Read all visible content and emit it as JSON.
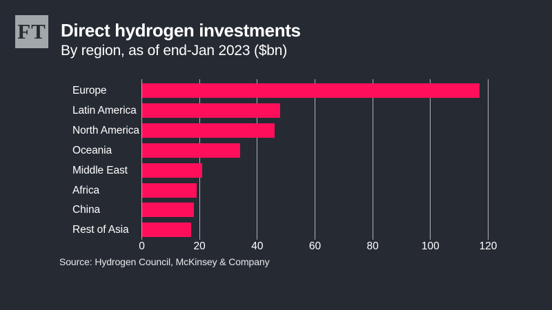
{
  "page": {
    "background_color": "#262a33",
    "text_color": "#ffffff"
  },
  "logo": {
    "text": "FT",
    "background_color": "#a2a7ac"
  },
  "header": {
    "title": "Direct hydrogen investments",
    "subtitle": "By region, as of end-Jan 2023 ($bn)"
  },
  "chart_data": {
    "type": "bar",
    "orientation": "horizontal",
    "title": "Direct hydrogen investments",
    "subtitle": "By region, as of end-Jan 2023 ($bn)",
    "categories": [
      "Europe",
      "Latin America",
      "North America",
      "Oceania",
      "Middle East",
      "Africa",
      "China",
      "Rest of Asia"
    ],
    "values": [
      117,
      48,
      46,
      34,
      21,
      19,
      18,
      17
    ],
    "unit": "$bn",
    "xlabel": "",
    "ylabel": "",
    "xlim": [
      0,
      120
    ],
    "xticks": [
      0,
      20,
      40,
      60,
      80,
      100,
      120
    ],
    "grid": true,
    "legend": false,
    "bar_color": "#ff0f5b",
    "gridline_color": "rgba(255,255,255,0.65)"
  },
  "footer": {
    "source": "Source: Hydrogen Council, McKinsey & Company"
  }
}
